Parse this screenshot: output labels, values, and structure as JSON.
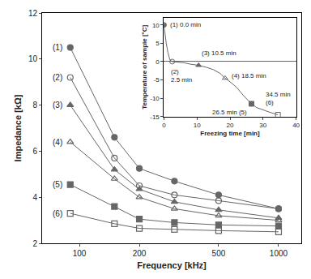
{
  "chart_data": [
    {
      "type": "line",
      "x": [
        90,
        150,
        200,
        300,
        500,
        1000
      ],
      "log": "x",
      "xlabel": "Frequency [kHz]",
      "ylabel": "Impedance [kΩ]",
      "xlim": [
        65,
        1300
      ],
      "xticks": [
        100,
        200,
        500,
        1000
      ],
      "ylim": [
        2,
        12
      ],
      "yticks": [
        2,
        4,
        6,
        8,
        10,
        12
      ],
      "grid": false,
      "series": [
        {
          "name": "(1)",
          "marker": "circle",
          "color": "#666666",
          "values": [
            10.5,
            6.6,
            5.25,
            4.7,
            4.1,
            3.5
          ]
        },
        {
          "name": "(2)",
          "marker": "circle-open",
          "color": "#666666",
          "values": [
            9.2,
            5.7,
            4.5,
            4.1,
            3.85,
            3.5
          ]
        },
        {
          "name": "(3)",
          "marker": "triangle-up",
          "color": "#666666",
          "values": [
            8.0,
            5.2,
            4.35,
            3.8,
            3.45,
            3.1
          ]
        },
        {
          "name": "(4)",
          "marker": "triangle-up-open",
          "color": "#666666",
          "values": [
            6.4,
            4.8,
            4.0,
            3.5,
            3.2,
            3.0
          ]
        },
        {
          "name": "(5)",
          "marker": "square",
          "color": "#666666",
          "values": [
            4.55,
            3.6,
            3.05,
            2.9,
            2.8,
            2.75
          ]
        },
        {
          "name": "(6)",
          "marker": "square-open",
          "color": "#666666",
          "values": [
            3.3,
            2.85,
            2.65,
            2.6,
            2.55,
            2.5
          ]
        }
      ]
    },
    {
      "type": "line",
      "x": [
        0,
        0.3,
        0.7,
        1.2,
        1.8,
        2.5,
        4.0,
        6.0,
        8.0,
        10.5,
        13,
        15,
        17,
        18.5,
        20,
        22,
        24,
        26.5,
        28,
        30,
        32,
        34.5
      ],
      "xlabel": "Freezing time [min]",
      "ylabel": "Temperature of sample [°C]",
      "xlim": [
        0,
        40
      ],
      "xticks": [
        0,
        10,
        20,
        30,
        40
      ],
      "ylim": [
        -15,
        12
      ],
      "yticks": [
        -15,
        -10,
        -5,
        0,
        5,
        10
      ],
      "grid": false,
      "series": [
        {
          "color": "#666666",
          "values": [
            10,
            7.5,
            5.0,
            2.5,
            0.5,
            0.0,
            -0.15,
            -0.3,
            -0.7,
            -1.0,
            -1.6,
            -2.2,
            -3.2,
            -4.5,
            -5.5,
            -7.0,
            -9.2,
            -11.5,
            -12.5,
            -13.2,
            -13.8,
            -14.5
          ]
        }
      ],
      "annotations": [
        {
          "x": 0,
          "y": 10,
          "text": "(1) 0.0 min",
          "marker": "circle"
        },
        {
          "x": 2.5,
          "y": 0.0,
          "text": "(2)\n2.5 min",
          "marker": "circle-open"
        },
        {
          "x": 10.5,
          "y": -1.0,
          "text": "(3) 10.5 min",
          "marker": "triangle-up"
        },
        {
          "x": 18.5,
          "y": -4.5,
          "text": "(4) 18.5 min",
          "marker": "triangle-up-open"
        },
        {
          "x": 26.5,
          "y": -11.5,
          "text": "26.5 min (5)",
          "marker": "square"
        },
        {
          "x": 34.5,
          "y": -14.5,
          "text": "34.5 min\n(6)",
          "marker": "square-open"
        }
      ]
    }
  ]
}
